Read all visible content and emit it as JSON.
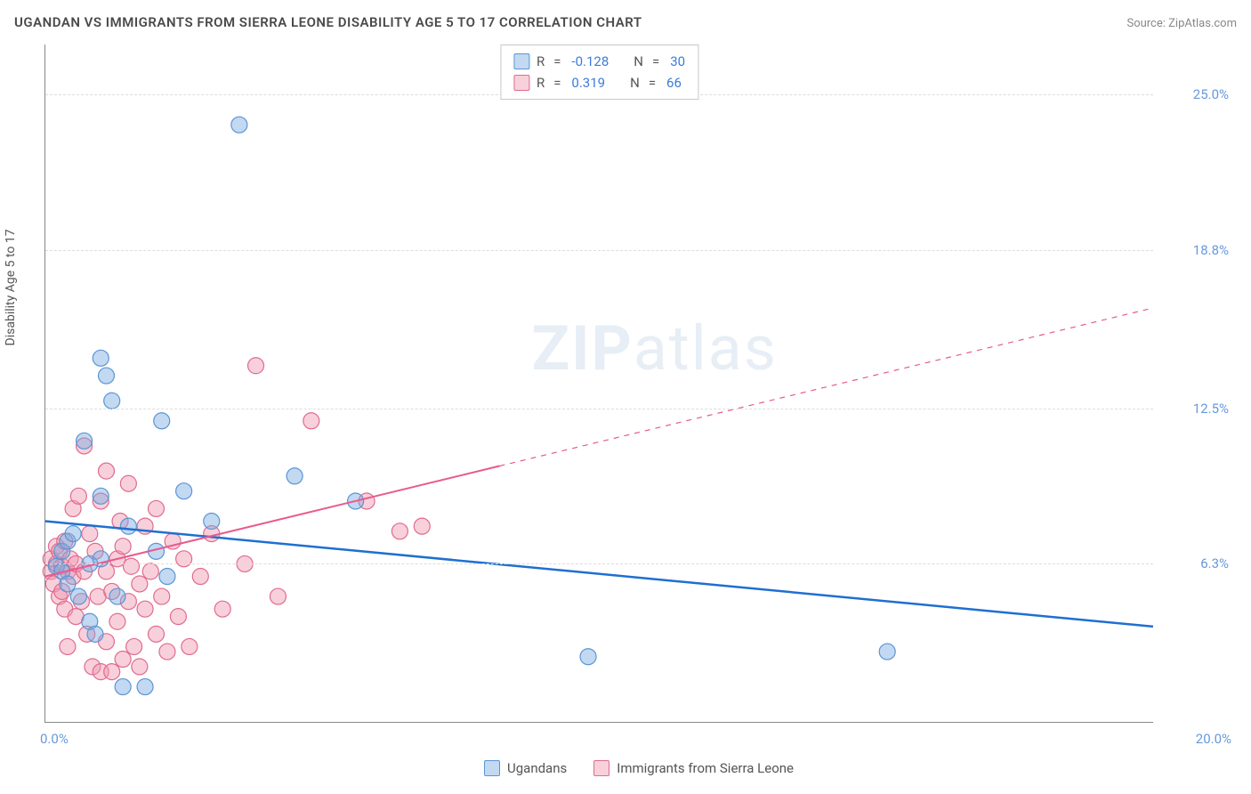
{
  "header": {
    "title": "UGANDAN VS IMMIGRANTS FROM SIERRA LEONE DISABILITY AGE 5 TO 17 CORRELATION CHART",
    "source_prefix": "Source: ",
    "source_name": "ZipAtlas.com"
  },
  "watermark": {
    "zip": "ZIP",
    "atlas": "atlas"
  },
  "chart": {
    "type": "scatter",
    "y_axis_title": "Disability Age 5 to 17",
    "x_domain": [
      0,
      20
    ],
    "y_domain": [
      0,
      27
    ],
    "background_color": "#ffffff",
    "grid_color": "#dddddd",
    "axis_color": "#888888",
    "tick_color": "#6699dd",
    "y_ticks": [
      {
        "v": 6.3,
        "label": "6.3%"
      },
      {
        "v": 12.5,
        "label": "12.5%"
      },
      {
        "v": 18.8,
        "label": "18.8%"
      },
      {
        "v": 25.0,
        "label": "25.0%"
      }
    ],
    "x_ticks": [
      {
        "v": 0,
        "label": "0.0%"
      },
      {
        "v": 20,
        "label": "20.0%"
      }
    ],
    "stats_box": {
      "rows": [
        {
          "swatch": "blue",
          "r_label": "R",
          "r_val": "-0.128",
          "n_label": "N",
          "n_val": "30"
        },
        {
          "swatch": "pink",
          "r_label": "R",
          "r_val": "0.319",
          "n_label": "N",
          "n_val": "66"
        }
      ]
    },
    "series": {
      "blue": {
        "label": "Ugandans",
        "fill": "rgba(120,170,225,0.45)",
        "stroke": "#5b95d6",
        "line_stroke": "#1f6fd0",
        "line_width": 2.5,
        "regression": {
          "x1": 0,
          "y1": 8.0,
          "x2": 20,
          "y2": 3.8,
          "dash_after_x": 20
        },
        "points": [
          [
            0.2,
            6.2
          ],
          [
            0.3,
            6.8
          ],
          [
            0.3,
            6.0
          ],
          [
            0.4,
            7.2
          ],
          [
            0.6,
            5.0
          ],
          [
            0.7,
            11.2
          ],
          [
            0.8,
            6.3
          ],
          [
            1.0,
            14.5
          ],
          [
            1.0,
            9.0
          ],
          [
            1.1,
            13.8
          ],
          [
            1.2,
            12.8
          ],
          [
            1.4,
            1.4
          ],
          [
            1.8,
            1.4
          ],
          [
            2.2,
            5.8
          ],
          [
            2.1,
            12.0
          ],
          [
            2.5,
            9.2
          ],
          [
            3.0,
            8.0
          ],
          [
            3.5,
            23.8
          ],
          [
            4.5,
            9.8
          ],
          [
            5.6,
            8.8
          ],
          [
            9.8,
            2.6
          ],
          [
            15.2,
            2.8
          ],
          [
            0.5,
            7.5
          ],
          [
            0.8,
            4.0
          ],
          [
            1.0,
            6.5
          ],
          [
            1.5,
            7.8
          ],
          [
            0.4,
            5.5
          ],
          [
            0.9,
            3.5
          ],
          [
            1.3,
            5.0
          ],
          [
            2.0,
            6.8
          ]
        ]
      },
      "pink": {
        "label": "Immigrants from Sierra Leone",
        "fill": "rgba(240,150,175,0.45)",
        "stroke": "#e06b8e",
        "line_stroke": "#e85a8e",
        "line_width": 2,
        "regression": {
          "x1": 0,
          "y1": 5.8,
          "x2": 8.2,
          "y2": 10.2,
          "dash_after_x": 8.2,
          "dash_x2": 20,
          "dash_y2": 16.5
        },
        "points": [
          [
            0.1,
            6.0
          ],
          [
            0.1,
            6.5
          ],
          [
            0.15,
            5.5
          ],
          [
            0.2,
            6.3
          ],
          [
            0.2,
            7.0
          ],
          [
            0.25,
            5.0
          ],
          [
            0.25,
            6.8
          ],
          [
            0.3,
            6.2
          ],
          [
            0.3,
            5.2
          ],
          [
            0.35,
            4.5
          ],
          [
            0.35,
            7.2
          ],
          [
            0.4,
            6.0
          ],
          [
            0.4,
            3.0
          ],
          [
            0.45,
            6.5
          ],
          [
            0.5,
            5.8
          ],
          [
            0.5,
            8.5
          ],
          [
            0.55,
            4.2
          ],
          [
            0.55,
            6.3
          ],
          [
            0.6,
            9.0
          ],
          [
            0.65,
            4.8
          ],
          [
            0.7,
            11.0
          ],
          [
            0.7,
            6.0
          ],
          [
            0.75,
            3.5
          ],
          [
            0.8,
            7.5
          ],
          [
            0.85,
            2.2
          ],
          [
            0.9,
            6.8
          ],
          [
            0.95,
            5.0
          ],
          [
            1.0,
            2.0
          ],
          [
            1.0,
            8.8
          ],
          [
            1.1,
            3.2
          ],
          [
            1.1,
            6.0
          ],
          [
            1.1,
            10.0
          ],
          [
            1.2,
            5.2
          ],
          [
            1.2,
            2.0
          ],
          [
            1.3,
            6.5
          ],
          [
            1.3,
            4.0
          ],
          [
            1.35,
            8.0
          ],
          [
            1.4,
            2.5
          ],
          [
            1.4,
            7.0
          ],
          [
            1.5,
            4.8
          ],
          [
            1.5,
            9.5
          ],
          [
            1.55,
            6.2
          ],
          [
            1.6,
            3.0
          ],
          [
            1.7,
            5.5
          ],
          [
            1.7,
            2.2
          ],
          [
            1.8,
            7.8
          ],
          [
            1.8,
            4.5
          ],
          [
            1.9,
            6.0
          ],
          [
            2.0,
            3.5
          ],
          [
            2.0,
            8.5
          ],
          [
            2.1,
            5.0
          ],
          [
            2.2,
            2.8
          ],
          [
            2.3,
            7.2
          ],
          [
            2.4,
            4.2
          ],
          [
            2.5,
            6.5
          ],
          [
            2.6,
            3.0
          ],
          [
            2.8,
            5.8
          ],
          [
            3.0,
            7.5
          ],
          [
            3.2,
            4.5
          ],
          [
            3.6,
            6.3
          ],
          [
            3.8,
            14.2
          ],
          [
            4.2,
            5.0
          ],
          [
            4.8,
            12.0
          ],
          [
            5.8,
            8.8
          ],
          [
            6.4,
            7.6
          ],
          [
            6.8,
            7.8
          ]
        ]
      }
    },
    "marker_radius": 9
  }
}
